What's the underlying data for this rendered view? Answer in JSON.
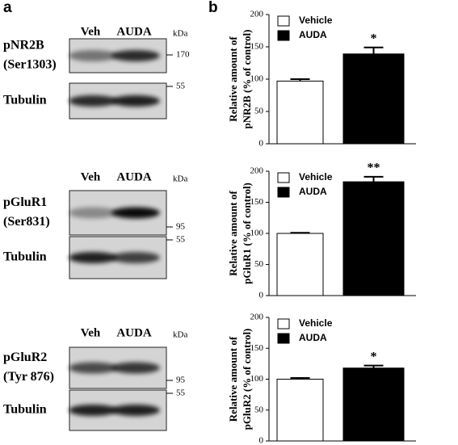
{
  "panel_labels": [
    "a",
    "b"
  ],
  "blots": [
    {
      "columns": [
        "Veh",
        "AUDA"
      ],
      "unit": "kDa",
      "rows": [
        [
          "pNR2B",
          "(Ser1303)"
        ],
        [
          "Tubulin"
        ]
      ],
      "markers": [
        "170",
        "55"
      ]
    },
    {
      "columns": [
        "Veh",
        "AUDA"
      ],
      "unit": "kDa",
      "rows": [
        [
          "pGluR1",
          "(Ser831)"
        ],
        [
          "Tubulin"
        ]
      ],
      "markers": [
        "95",
        "55"
      ]
    },
    {
      "columns": [
        "Veh",
        "AUDA"
      ],
      "unit": "kDa",
      "rows": [
        [
          "pGluR2",
          "(Tyr 876)"
        ],
        [
          "Tubulin"
        ]
      ],
      "markers": [
        "95",
        "55"
      ]
    }
  ],
  "chart_data": [
    {
      "type": "bar",
      "ylabel": [
        "Relative amount of",
        "pNR2B (% of control)"
      ],
      "ylim": [
        0,
        200
      ],
      "yticks": [
        0,
        50,
        100,
        150,
        200
      ],
      "series": [
        {
          "name": "Vehicle",
          "color": "#ffffff",
          "values": [
            97
          ],
          "errors": [
            3
          ]
        },
        {
          "name": "AUDA",
          "color": "#000000",
          "values": [
            139
          ],
          "errors": [
            10
          ],
          "annotation": "*"
        }
      ]
    },
    {
      "type": "bar",
      "ylabel": [
        "Relative amount of",
        "pGluR1 (% of control)"
      ],
      "ylim": [
        0,
        200
      ],
      "yticks": [
        0,
        50,
        100,
        150,
        200
      ],
      "series": [
        {
          "name": "Vehicle",
          "color": "#ffffff",
          "values": [
            100
          ],
          "errors": [
            1
          ]
        },
        {
          "name": "AUDA",
          "color": "#000000",
          "values": [
            183
          ],
          "errors": [
            8
          ],
          "annotation": "**"
        }
      ]
    },
    {
      "type": "bar",
      "ylabel": [
        "Relative amount of",
        "pGluR2 (% of control)"
      ],
      "ylim": [
        0,
        200
      ],
      "yticks": [
        0,
        50,
        100,
        150,
        200
      ],
      "series": [
        {
          "name": "Vehicle",
          "color": "#ffffff",
          "values": [
            100
          ],
          "errors": [
            2
          ]
        },
        {
          "name": "AUDA",
          "color": "#000000",
          "values": [
            118
          ],
          "errors": [
            4
          ],
          "annotation": "*"
        }
      ]
    }
  ]
}
